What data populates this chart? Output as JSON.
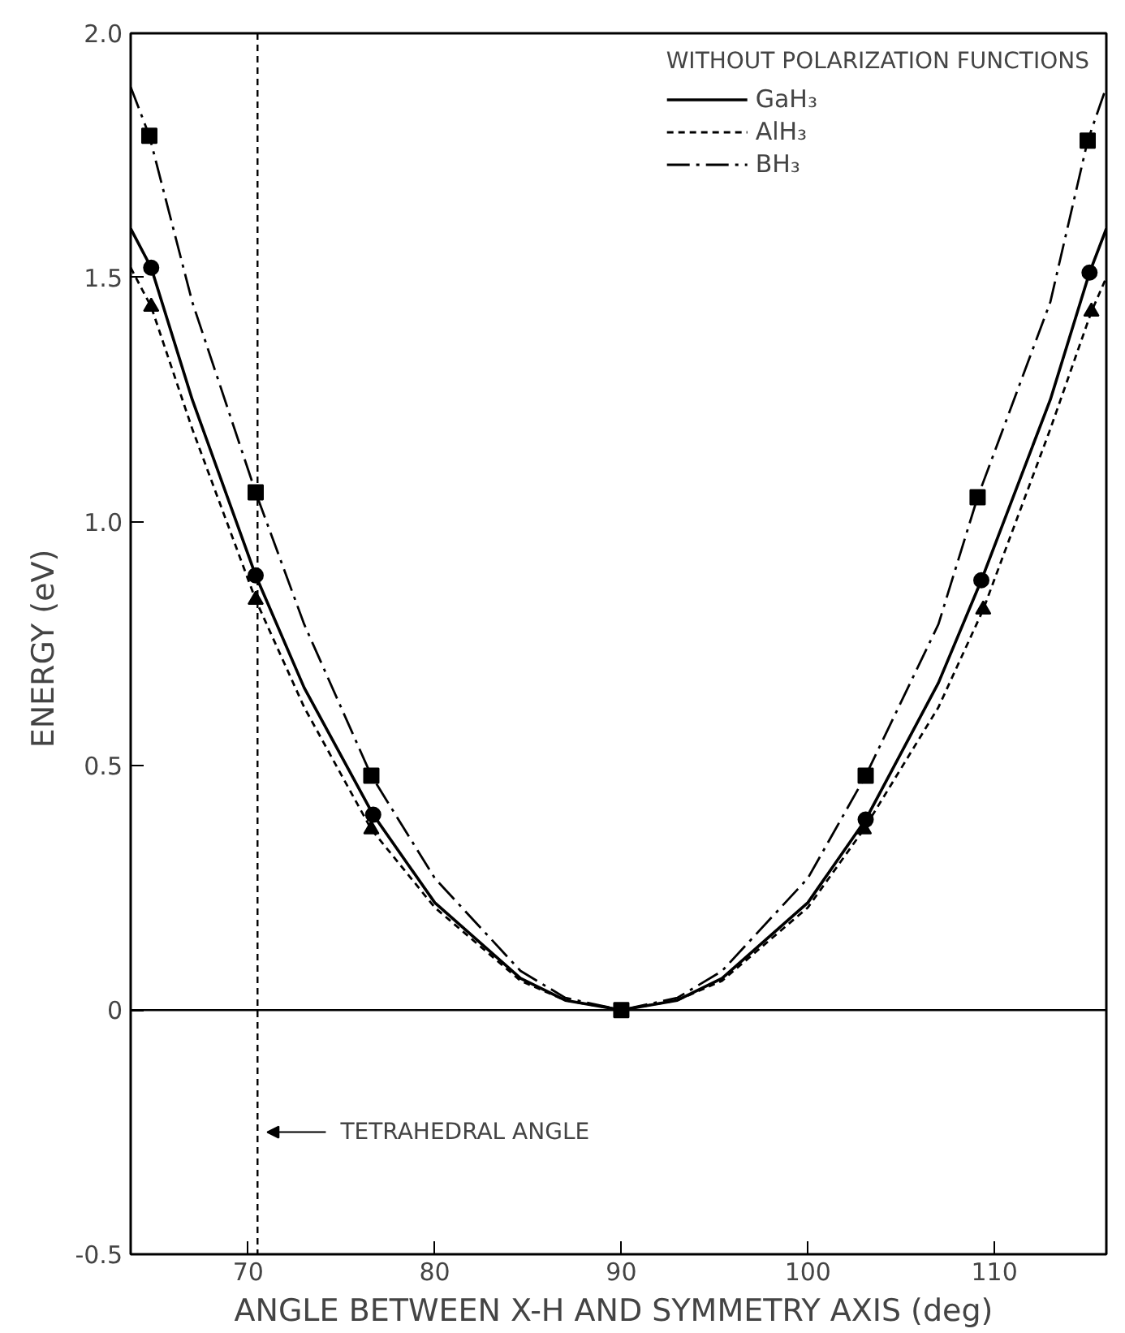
{
  "chart_data": {
    "type": "line",
    "xlabel": "ANGLE BETWEEN X-H AND SYMMETRY AXIS  (deg)",
    "ylabel": "ENERGY  (eV)",
    "legend_title": "WITHOUT POLARIZATION FUNCTIONS",
    "legend": "top right",
    "grid": false,
    "xlim": [
      63.7,
      116
    ],
    "ylim": [
      -0.5,
      2.0
    ],
    "xticks": [
      70,
      80,
      90,
      100,
      110
    ],
    "yticks": [
      {
        "value": -0.5,
        "label": "-0.5"
      },
      0,
      {
        "value": 0.5,
        "label": "0.5"
      },
      {
        "value": 1,
        "label": "1.0"
      },
      {
        "value": 1.5,
        "label": "1.5"
      },
      {
        "value": 2,
        "label": "2.0"
      }
    ],
    "series": [
      {
        "name": "GaH₃",
        "line_style": "solid",
        "color": "#000000",
        "x": [
          63.7,
          64.8,
          67,
          70.4,
          73,
          76.7,
          80,
          84.6,
          87,
          90,
          93,
          95.4,
          100,
          103.1,
          107,
          109.3,
          113,
          115.1,
          116
        ],
        "values": [
          1.6,
          1.52,
          1.25,
          0.89,
          0.66,
          0.4,
          0.22,
          0.065,
          0.02,
          0,
          0.02,
          0.065,
          0.22,
          0.39,
          0.67,
          0.88,
          1.25,
          1.51,
          1.6
        ]
      },
      {
        "name": "AlH₃",
        "line_style": "dashed",
        "color": "#000000",
        "x": [
          63.7,
          64.8,
          67,
          70.4,
          73,
          76.6,
          80,
          84.6,
          87,
          90,
          93,
          95.4,
          100,
          103,
          107,
          109.4,
          113,
          115.2,
          116
        ],
        "values": [
          1.52,
          1.44,
          1.19,
          0.84,
          0.62,
          0.37,
          0.21,
          0.06,
          0.02,
          0,
          0.02,
          0.06,
          0.21,
          0.37,
          0.62,
          0.82,
          1.19,
          1.43,
          1.5
        ]
      },
      {
        "name": "BH₃",
        "line_style": "dashdot",
        "color": "#000000",
        "x": [
          63.7,
          64.7,
          67,
          70.4,
          73,
          76.6,
          80,
          84.6,
          87,
          90,
          93,
          95.4,
          100,
          103.1,
          107,
          109.1,
          113,
          115,
          116
        ],
        "values": [
          1.89,
          1.79,
          1.45,
          1.06,
          0.79,
          0.48,
          0.27,
          0.08,
          0.025,
          0,
          0.025,
          0.08,
          0.27,
          0.48,
          0.79,
          1.05,
          1.45,
          1.78,
          1.89
        ]
      },
      {
        "type": "scatter",
        "marker": "circle",
        "color": "#000000",
        "x": [
          64.8,
          70.4,
          76.7,
          103.1,
          109.3,
          115.1
        ],
        "values": [
          1.52,
          0.89,
          0.4,
          0.39,
          0.88,
          1.51
        ]
      },
      {
        "type": "scatter",
        "marker": "triangle",
        "color": "#000000",
        "x": [
          64.8,
          70.4,
          76.6,
          103,
          109.4,
          115.2
        ],
        "values": [
          1.44,
          0.84,
          0.37,
          0.37,
          0.82,
          1.43
        ]
      },
      {
        "type": "scatter",
        "marker": "square",
        "color": "#000000",
        "x": [
          64.7,
          70.4,
          76.6,
          90,
          103.1,
          109.1,
          115
        ],
        "values": [
          1.79,
          1.06,
          0.48,
          0,
          0.48,
          1.05,
          1.78
        ]
      }
    ],
    "ref_lines": [
      {
        "axis": "y",
        "value": 0,
        "line_style": "solid",
        "color": "#000000"
      },
      {
        "axis": "x",
        "value": 70.5,
        "label": "TETRAHEDRAL ANGLE",
        "line_style": "dashed",
        "color": "#000000"
      }
    ]
  }
}
